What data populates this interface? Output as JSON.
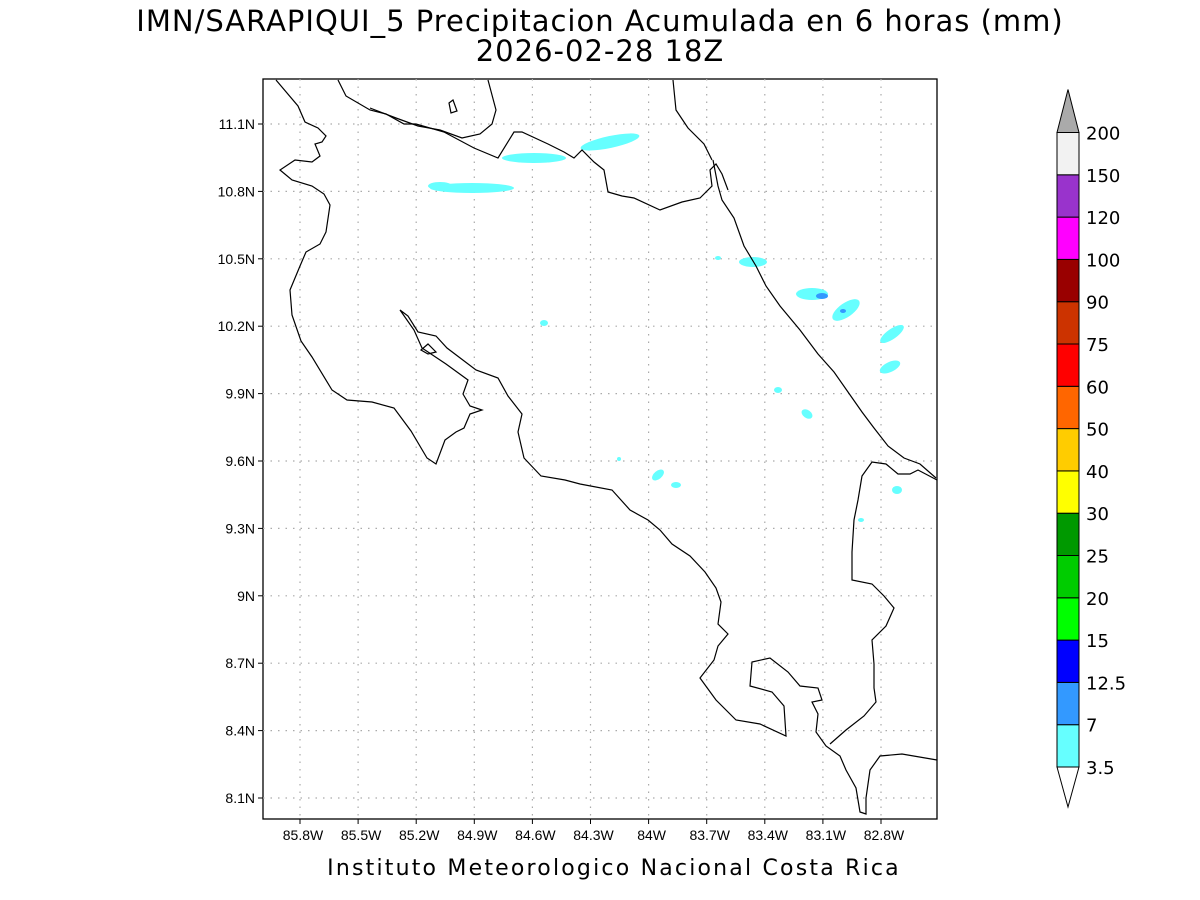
{
  "header": {
    "title": "IMN/SARAPIQUI_5 Precipitacion Acumulada en 6 horas (mm)",
    "subtitle": "2026-02-28 18Z"
  },
  "footer": {
    "credit": "Instituto Meteorologico Nacional Costa Rica"
  },
  "map": {
    "lat_ticks": [
      "11.1N",
      "10.8N",
      "10.5N",
      "10.2N",
      "9.9N",
      "9.6N",
      "9.3N",
      "9N",
      "8.7N",
      "8.4N",
      "8.1N"
    ],
    "lon_ticks": [
      "85.8W",
      "85.5W",
      "85.2W",
      "84.9W",
      "84.6W",
      "84.3W",
      "84W",
      "83.7W",
      "83.4W",
      "83.1W",
      "82.8W"
    ],
    "grid": true,
    "coastline_color": "#000000",
    "precip_color_light": "#66ffff",
    "precip_color_mid": "#3399ff"
  },
  "colorbar": {
    "labels": [
      "3.5",
      "7",
      "12.5",
      "15",
      "20",
      "25",
      "30",
      "40",
      "50",
      "60",
      "75",
      "90",
      "100",
      "120",
      "150",
      "200"
    ],
    "colors": [
      "#66ffff",
      "#3399ff",
      "#0000ff",
      "#00ff00",
      "#00cc00",
      "#009900",
      "#ffff00",
      "#ffcc00",
      "#ff6600",
      "#ff0000",
      "#cc3300",
      "#990000",
      "#ff00ff",
      "#9933cc",
      "#f2f2f2",
      "#aaaaaa"
    ]
  }
}
